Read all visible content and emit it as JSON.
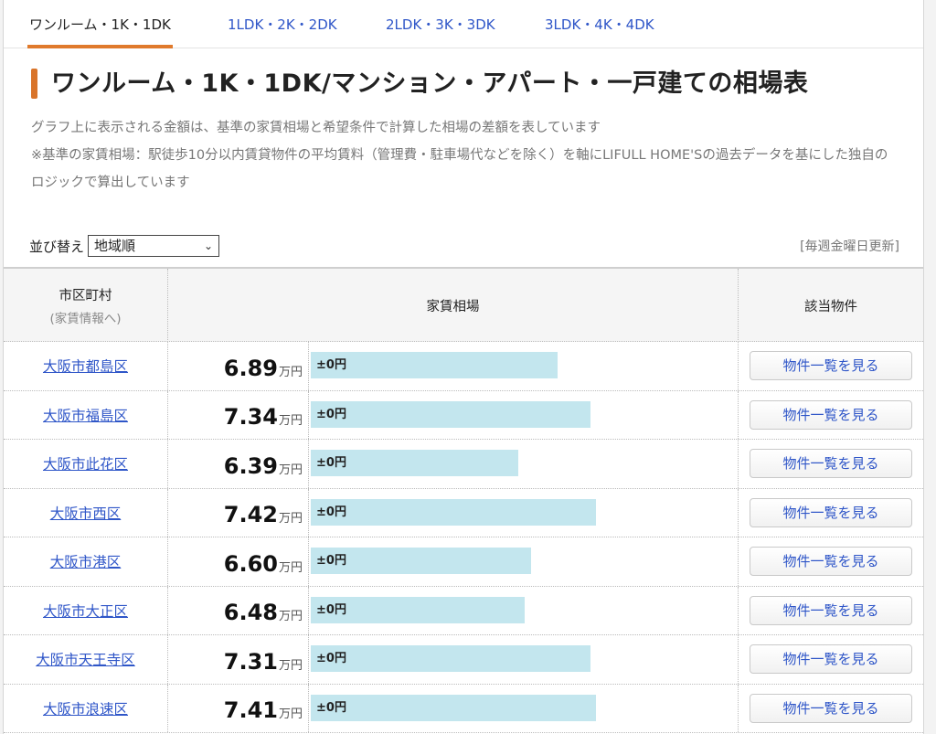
{
  "tabs": [
    {
      "label": "ワンルーム・1K・1DK",
      "active": true
    },
    {
      "label": "1LDK・2K・2DK",
      "active": false
    },
    {
      "label": "2LDK・3K・3DK",
      "active": false
    },
    {
      "label": "3LDK・4K・4DK",
      "active": false
    }
  ],
  "heading": "ワンルーム・1K・1DK/マンション・アパート・一戸建ての相場表",
  "description": {
    "line1": "グラフ上に表示される金額は、基準の家賃相場と希望条件で計算した相場の差額を表しています",
    "line2": "※基準の家賃相場：駅徒歩10分以内賃貸物件の平均賃料（管理費・駐車場代などを除く）を軸にLIFULL HOME'Sの過去データを基にした独自のロジックで算出しています"
  },
  "sort": {
    "label": "並び替え",
    "selected": "地域順"
  },
  "updated": "[毎週金曜日更新]",
  "table": {
    "headers": {
      "area": "市区町村",
      "area_sub": "(家賃情報へ)",
      "rent": "家賃相場",
      "listings": "該当物件"
    },
    "unit": "万円",
    "button_label": "物件一覧を見る",
    "rows": [
      {
        "name": "大阪市都島区",
        "price": "6.89",
        "diff": "±0円",
        "bar_fraction": 0.587
      },
      {
        "name": "大阪市福島区",
        "price": "7.34",
        "diff": "±0円",
        "bar_fraction": 0.665
      },
      {
        "name": "大阪市此花区",
        "price": "6.39",
        "diff": "±0円",
        "bar_fraction": 0.493
      },
      {
        "name": "大阪市西区",
        "price": "7.42",
        "diff": "±0円",
        "bar_fraction": 0.679
      },
      {
        "name": "大阪市港区",
        "price": "6.60",
        "diff": "±0円",
        "bar_fraction": 0.523
      },
      {
        "name": "大阪市大正区",
        "price": "6.48",
        "diff": "±0円",
        "bar_fraction": 0.509
      },
      {
        "name": "大阪市天王寺区",
        "price": "7.31",
        "diff": "±0円",
        "bar_fraction": 0.665
      },
      {
        "name": "大阪市浪速区",
        "price": "7.41",
        "diff": "±0円",
        "bar_fraction": 0.679
      }
    ]
  },
  "colors": {
    "accent": "#e07a2c",
    "link": "#2f56c8",
    "bar": "#c3e6ee"
  }
}
